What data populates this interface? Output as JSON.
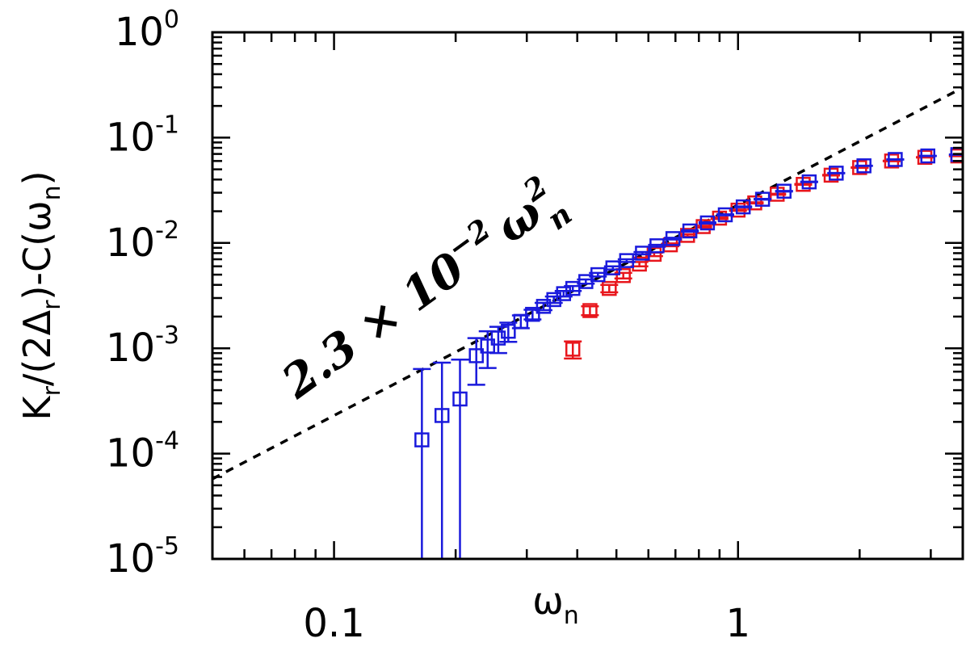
{
  "chart_data": {
    "type": "scatter",
    "x_scale": "log",
    "y_scale": "log",
    "xlim": [
      0.05,
      3.6
    ],
    "ylim": [
      1e-05,
      1
    ],
    "xlabel_base": "ω",
    "xlabel_sub": "n",
    "ylabel_parts": [
      "K",
      "r",
      "/(2Δ",
      "r",
      ")-C(ω",
      "n",
      ")"
    ],
    "x_ticks": [
      {
        "value": 0.1,
        "label": "0.1"
      },
      {
        "value": 1,
        "label": "1"
      }
    ],
    "y_ticks": [
      {
        "value": 1,
        "base": "10",
        "exp": "0"
      },
      {
        "value": 0.1,
        "base": "10",
        "exp": "-1"
      },
      {
        "value": 0.01,
        "base": "10",
        "exp": "-2"
      },
      {
        "value": 0.001,
        "base": "10",
        "exp": "-3"
      },
      {
        "value": 0.0001,
        "base": "10",
        "exp": "-4"
      },
      {
        "value": 1e-05,
        "base": "10",
        "exp": "-5"
      }
    ],
    "annotation": {
      "text_main": "2.3 × 10",
      "text_exp": "−2",
      "text_var": "ω",
      "text_var_sup": "2",
      "text_var_sub": "n"
    },
    "fit_line": {
      "coefficient": 0.023,
      "power": 2,
      "style": "dashed",
      "color": "#000000"
    },
    "series": [
      {
        "color": "#e8161c",
        "marker": "square-open",
        "points": [
          {
            "x": 0.39,
            "y": 0.00098,
            "err": 0.00018
          },
          {
            "x": 0.43,
            "y": 0.00228,
            "err": 0.00022
          },
          {
            "x": 0.48,
            "y": 0.0037,
            "err": 0.0003
          },
          {
            "x": 0.52,
            "y": 0.0049,
            "err": 0.0003
          },
          {
            "x": 0.57,
            "y": 0.0063,
            "err": 0.0003
          },
          {
            "x": 0.62,
            "y": 0.0078,
            "err": 0.0003
          },
          {
            "x": 0.68,
            "y": 0.0096,
            "err": 0.0003
          },
          {
            "x": 0.75,
            "y": 0.0118,
            "err": 0.0003
          },
          {
            "x": 0.82,
            "y": 0.0143,
            "err": 0.0003
          },
          {
            "x": 0.9,
            "y": 0.0172,
            "err": 0.0003
          },
          {
            "x": 1.0,
            "y": 0.0205,
            "err": 0.0003
          },
          {
            "x": 1.1,
            "y": 0.024,
            "err": 0.0003
          },
          {
            "x": 1.25,
            "y": 0.029,
            "err": 0.0003
          },
          {
            "x": 1.45,
            "y": 0.036,
            "err": 0.0003
          },
          {
            "x": 1.7,
            "y": 0.044,
            "err": 0.0003
          },
          {
            "x": 2.0,
            "y": 0.052,
            "err": 0.0003
          },
          {
            "x": 2.4,
            "y": 0.06,
            "err": 0.0003
          },
          {
            "x": 2.9,
            "y": 0.065,
            "err": 0.0003
          },
          {
            "x": 3.5,
            "y": 0.067,
            "err": 0.0003
          }
        ]
      },
      {
        "color": "#1a1adc",
        "marker": "square-open",
        "points": [
          {
            "x": 0.165,
            "y": 0.000135,
            "err": 0.0005
          },
          {
            "x": 0.185,
            "y": 0.00023,
            "err": 0.0005
          },
          {
            "x": 0.205,
            "y": 0.00033,
            "err": 0.00045
          },
          {
            "x": 0.225,
            "y": 0.00085,
            "err": 0.0004
          },
          {
            "x": 0.24,
            "y": 0.00105,
            "err": 0.0004
          },
          {
            "x": 0.255,
            "y": 0.00125,
            "err": 0.00035
          },
          {
            "x": 0.27,
            "y": 0.00145,
            "err": 0.0003
          },
          {
            "x": 0.29,
            "y": 0.0018,
            "err": 0.00025
          },
          {
            "x": 0.31,
            "y": 0.0021,
            "err": 0.00022
          },
          {
            "x": 0.33,
            "y": 0.0025,
            "err": 0.0002
          },
          {
            "x": 0.35,
            "y": 0.0029,
            "err": 0.0002
          },
          {
            "x": 0.37,
            "y": 0.0033,
            "err": 0.0002
          },
          {
            "x": 0.39,
            "y": 0.0037,
            "err": 0.0002
          },
          {
            "x": 0.42,
            "y": 0.0043,
            "err": 0.0002
          },
          {
            "x": 0.45,
            "y": 0.005,
            "err": 0.0002
          },
          {
            "x": 0.49,
            "y": 0.0058,
            "err": 0.0002
          },
          {
            "x": 0.53,
            "y": 0.0068,
            "err": 0.0002
          },
          {
            "x": 0.58,
            "y": 0.008,
            "err": 0.0002
          },
          {
            "x": 0.63,
            "y": 0.0094,
            "err": 0.0002
          },
          {
            "x": 0.69,
            "y": 0.011,
            "err": 0.0002
          },
          {
            "x": 0.76,
            "y": 0.013,
            "err": 0.0002
          },
          {
            "x": 0.84,
            "y": 0.0155,
            "err": 0.0002
          },
          {
            "x": 0.93,
            "y": 0.0185,
            "err": 0.0002
          },
          {
            "x": 1.03,
            "y": 0.022,
            "err": 0.0002
          },
          {
            "x": 1.15,
            "y": 0.026,
            "err": 0.0002
          },
          {
            "x": 1.3,
            "y": 0.031,
            "err": 0.0002
          },
          {
            "x": 1.5,
            "y": 0.038,
            "err": 0.0002
          },
          {
            "x": 1.75,
            "y": 0.046,
            "err": 0.0002
          },
          {
            "x": 2.05,
            "y": 0.054,
            "err": 0.0002
          },
          {
            "x": 2.45,
            "y": 0.062,
            "err": 0.0002
          },
          {
            "x": 2.95,
            "y": 0.067,
            "err": 0.0002
          },
          {
            "x": 3.5,
            "y": 0.069,
            "err": 0.0002
          }
        ]
      }
    ]
  }
}
